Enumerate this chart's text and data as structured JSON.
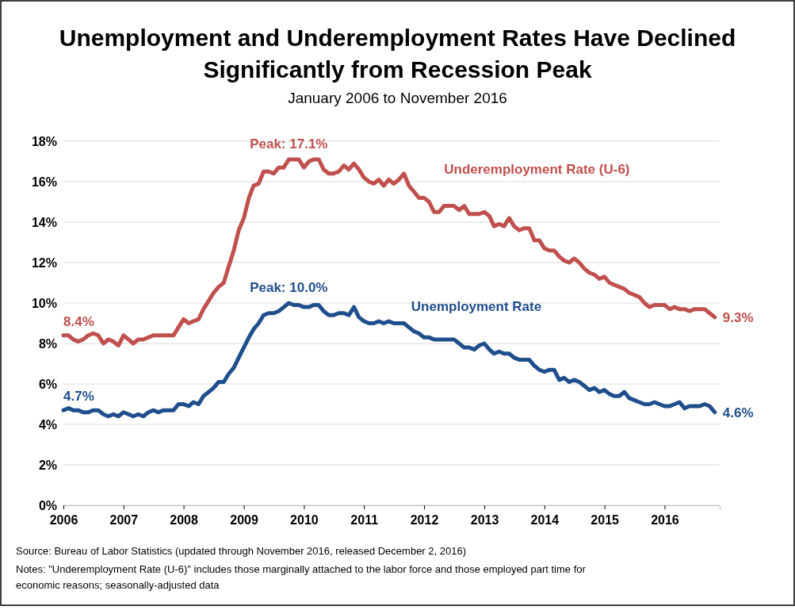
{
  "chart_data": {
    "type": "line",
    "title": "Unemployment and Underemployment Rates Have Declined Significantly from Recession Peak",
    "subtitle": "January 2006 to November 2016",
    "x": [
      "2006-01",
      "2006-02",
      "2006-03",
      "2006-04",
      "2006-05",
      "2006-06",
      "2006-07",
      "2006-08",
      "2006-09",
      "2006-10",
      "2006-11",
      "2006-12",
      "2007-01",
      "2007-02",
      "2007-03",
      "2007-04",
      "2007-05",
      "2007-06",
      "2007-07",
      "2007-08",
      "2007-09",
      "2007-10",
      "2007-11",
      "2007-12",
      "2008-01",
      "2008-02",
      "2008-03",
      "2008-04",
      "2008-05",
      "2008-06",
      "2008-07",
      "2008-08",
      "2008-09",
      "2008-10",
      "2008-11",
      "2008-12",
      "2009-01",
      "2009-02",
      "2009-03",
      "2009-04",
      "2009-05",
      "2009-06",
      "2009-07",
      "2009-08",
      "2009-09",
      "2009-10",
      "2009-11",
      "2009-12",
      "2010-01",
      "2010-02",
      "2010-03",
      "2010-04",
      "2010-05",
      "2010-06",
      "2010-07",
      "2010-08",
      "2010-09",
      "2010-10",
      "2010-11",
      "2010-12",
      "2011-01",
      "2011-02",
      "2011-03",
      "2011-04",
      "2011-05",
      "2011-06",
      "2011-07",
      "2011-08",
      "2011-09",
      "2011-10",
      "2011-11",
      "2011-12",
      "2012-01",
      "2012-02",
      "2012-03",
      "2012-04",
      "2012-05",
      "2012-06",
      "2012-07",
      "2012-08",
      "2012-09",
      "2012-10",
      "2012-11",
      "2012-12",
      "2013-01",
      "2013-02",
      "2013-03",
      "2013-04",
      "2013-05",
      "2013-06",
      "2013-07",
      "2013-08",
      "2013-09",
      "2013-10",
      "2013-11",
      "2013-12",
      "2014-01",
      "2014-02",
      "2014-03",
      "2014-04",
      "2014-05",
      "2014-06",
      "2014-07",
      "2014-08",
      "2014-09",
      "2014-10",
      "2014-11",
      "2014-12",
      "2015-01",
      "2015-02",
      "2015-03",
      "2015-04",
      "2015-05",
      "2015-06",
      "2015-07",
      "2015-08",
      "2015-09",
      "2015-10",
      "2015-11",
      "2015-12",
      "2016-01",
      "2016-02",
      "2016-03",
      "2016-04",
      "2016-05",
      "2016-06",
      "2016-07",
      "2016-08",
      "2016-09",
      "2016-10",
      "2016-11"
    ],
    "series": [
      {
        "name": "Underemployment Rate (U-6)",
        "color": "#c0504d",
        "values": [
          8.4,
          8.4,
          8.2,
          8.1,
          8.2,
          8.4,
          8.5,
          8.4,
          8.0,
          8.2,
          8.1,
          7.9,
          8.4,
          8.2,
          8.0,
          8.2,
          8.2,
          8.3,
          8.4,
          8.4,
          8.4,
          8.4,
          8.4,
          8.8,
          9.2,
          9.0,
          9.1,
          9.2,
          9.7,
          10.1,
          10.5,
          10.8,
          11.0,
          11.8,
          12.6,
          13.6,
          14.2,
          15.2,
          15.8,
          15.9,
          16.5,
          16.5,
          16.4,
          16.7,
          16.7,
          17.1,
          17.1,
          17.1,
          16.7,
          17.0,
          17.1,
          17.1,
          16.6,
          16.4,
          16.4,
          16.5,
          16.8,
          16.6,
          16.9,
          16.6,
          16.2,
          16.0,
          15.9,
          16.1,
          15.8,
          16.1,
          15.9,
          16.1,
          16.4,
          15.8,
          15.5,
          15.2,
          15.2,
          15.0,
          14.5,
          14.5,
          14.8,
          14.8,
          14.8,
          14.6,
          14.8,
          14.4,
          14.4,
          14.4,
          14.5,
          14.3,
          13.8,
          13.9,
          13.8,
          14.2,
          13.8,
          13.6,
          13.7,
          13.7,
          13.1,
          13.1,
          12.7,
          12.6,
          12.6,
          12.3,
          12.1,
          12.0,
          12.2,
          12.0,
          11.7,
          11.5,
          11.4,
          11.2,
          11.3,
          11.0,
          10.9,
          10.8,
          10.7,
          10.5,
          10.4,
          10.3,
          10.0,
          9.8,
          9.9,
          9.9,
          9.9,
          9.7,
          9.8,
          9.7,
          9.7,
          9.6,
          9.7,
          9.7,
          9.7,
          9.5,
          9.3
        ]
      },
      {
        "name": "Unemployment Rate",
        "color": "#1f4e8c",
        "values": [
          4.7,
          4.8,
          4.7,
          4.7,
          4.6,
          4.6,
          4.7,
          4.7,
          4.5,
          4.4,
          4.5,
          4.4,
          4.6,
          4.5,
          4.4,
          4.5,
          4.4,
          4.6,
          4.7,
          4.6,
          4.7,
          4.7,
          4.7,
          5.0,
          5.0,
          4.9,
          5.1,
          5.0,
          5.4,
          5.6,
          5.8,
          6.1,
          6.1,
          6.5,
          6.8,
          7.3,
          7.8,
          8.3,
          8.7,
          9.0,
          9.4,
          9.5,
          9.5,
          9.6,
          9.8,
          10.0,
          9.9,
          9.9,
          9.8,
          9.8,
          9.9,
          9.9,
          9.6,
          9.4,
          9.4,
          9.5,
          9.5,
          9.4,
          9.8,
          9.3,
          9.1,
          9.0,
          9.0,
          9.1,
          9.0,
          9.1,
          9.0,
          9.0,
          9.0,
          8.8,
          8.6,
          8.5,
          8.3,
          8.3,
          8.2,
          8.2,
          8.2,
          8.2,
          8.2,
          8.0,
          7.8,
          7.8,
          7.7,
          7.9,
          8.0,
          7.7,
          7.5,
          7.6,
          7.5,
          7.5,
          7.3,
          7.2,
          7.2,
          7.2,
          6.9,
          6.7,
          6.6,
          6.7,
          6.7,
          6.2,
          6.3,
          6.1,
          6.2,
          6.1,
          5.9,
          5.7,
          5.8,
          5.6,
          5.7,
          5.5,
          5.4,
          5.4,
          5.6,
          5.3,
          5.2,
          5.1,
          5.0,
          5.0,
          5.1,
          5.0,
          4.9,
          4.9,
          5.0,
          5.1,
          4.8,
          4.9,
          4.9,
          4.9,
          5.0,
          4.9,
          4.6
        ]
      }
    ],
    "xlim": [
      "2006-01",
      "2016-12"
    ],
    "xticks": [
      "2006",
      "2007",
      "2008",
      "2009",
      "2010",
      "2011",
      "2012",
      "2013",
      "2014",
      "2015",
      "2016"
    ],
    "ylim": [
      0,
      18
    ],
    "yticks": [
      {
        "value": 0,
        "label": "0%"
      },
      {
        "value": 2,
        "label": "2%"
      },
      {
        "value": 4,
        "label": "4%"
      },
      {
        "value": 6,
        "label": "6%"
      },
      {
        "value": 8,
        "label": "8%"
      },
      {
        "value": 10,
        "label": "10%"
      },
      {
        "value": 12,
        "label": "12%"
      },
      {
        "value": 14,
        "label": "14%"
      },
      {
        "value": 16,
        "label": "16%"
      },
      {
        "value": 18,
        "label": "18%"
      }
    ],
    "grid": "y",
    "line_style": "solid",
    "marker": "none",
    "legend": false,
    "annotations": [
      {
        "text": "Peak: 17.1%",
        "x": "2009-10",
        "y": 17.1
      },
      {
        "text": "Peak: 10.0%",
        "x": "2009-10",
        "y": 10.0
      },
      {
        "text": "8.4%",
        "x": "2006-01",
        "y": 8.4
      },
      {
        "text": "4.7%",
        "x": "2006-01",
        "y": 4.7
      },
      {
        "text": "9.3%",
        "x": "2016-11",
        "y": 9.3
      },
      {
        "text": "4.6%",
        "x": "2016-11",
        "y": 4.6
      },
      "Source: Bureau of Labor Statistics (updated through November 2016, released December 2, 2016)",
      "Notes: \"Underemployment Rate (U-6)\" includes those marginally attached to the labor force and those employed part time for economic reasons; seasonally-adjusted data"
    ]
  }
}
